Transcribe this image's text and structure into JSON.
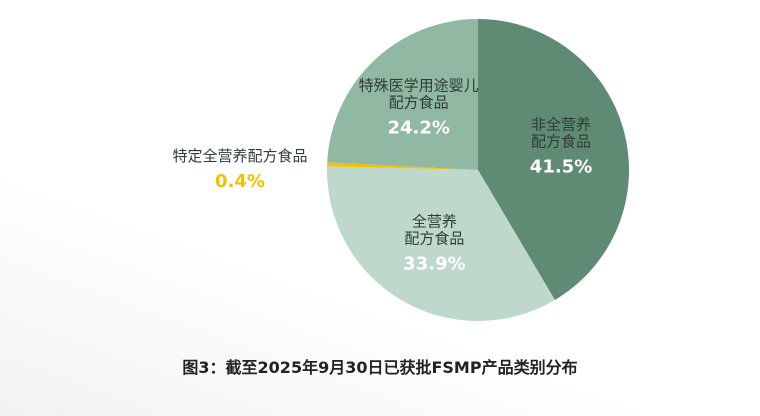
{
  "chart_data": {
    "type": "pie",
    "title": "图3：截至2025年9月30日已获批FSMP产品类别分布",
    "categories": [
      "非全营养\n配方食品",
      "全营养\n配方食品",
      "特定全营养配方食品",
      "特殊医学用途婴儿\n配方食品"
    ],
    "values": [
      41.5,
      33.9,
      0.4,
      24.2
    ],
    "value_labels": [
      "41.5%",
      "33.9%",
      "0.4%",
      "24.2%"
    ],
    "colors": [
      "#5f8b74",
      "#bed9cc",
      "#f2c200",
      "#91b8a3"
    ]
  }
}
